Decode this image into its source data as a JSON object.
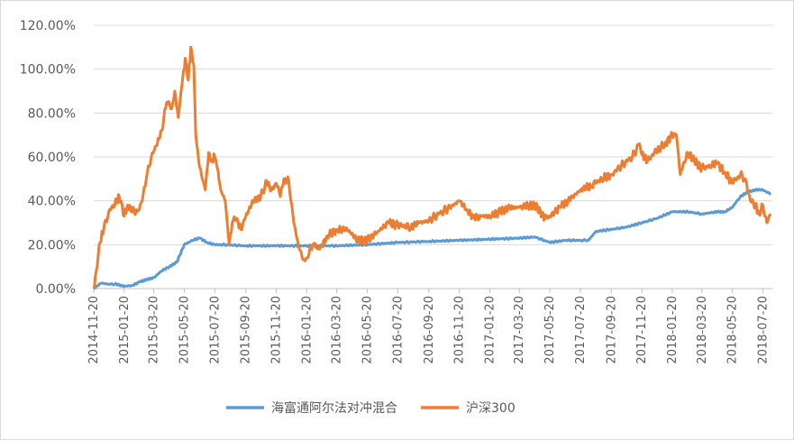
{
  "chart_data": {
    "type": "line",
    "title": "",
    "xlabel": "",
    "ylabel": "",
    "ylim": [
      0,
      1.2
    ],
    "y_ticks": [
      "0.00%",
      "20.00%",
      "40.00%",
      "60.00%",
      "80.00%",
      "100.00%",
      "120.00%"
    ],
    "x_tick_labels": [
      "2014-11-20",
      "2015-01-20",
      "2015-03-20",
      "2015-05-20",
      "2015-07-20",
      "2015-09-20",
      "2015-11-20",
      "2016-01-20",
      "2016-03-20",
      "2016-05-20",
      "2016-07-20",
      "2016-09-20",
      "2016-11-20",
      "2017-01-20",
      "2017-03-20",
      "2017-05-20",
      "2017-07-20",
      "2017-09-20",
      "2017-11-20",
      "2018-01-20",
      "2018-03-20",
      "2018-05-20",
      "2018-07-20"
    ],
    "legend_position": "bottom",
    "grid": "horizontal",
    "series": [
      {
        "name": "海富通阿尔法对冲混合",
        "color": "#5b9bd5",
        "x": [
          "2014-11-20",
          "2014-12-05",
          "2014-12-20",
          "2015-01-05",
          "2015-01-20",
          "2015-02-05",
          "2015-02-20",
          "2015-03-05",
          "2015-03-20",
          "2015-04-05",
          "2015-04-20",
          "2015-05-05",
          "2015-05-20",
          "2015-06-05",
          "2015-06-20",
          "2015-07-05",
          "2015-07-20",
          "2015-08-05",
          "2015-09-20",
          "2015-11-20",
          "2016-01-20",
          "2016-03-20",
          "2016-05-20",
          "2016-07-20",
          "2016-09-20",
          "2016-11-20",
          "2017-01-20",
          "2017-03-20",
          "2017-04-20",
          "2017-05-20",
          "2017-06-20",
          "2017-07-20",
          "2017-08-05",
          "2017-08-20",
          "2017-09-20",
          "2017-10-20",
          "2017-11-20",
          "2017-12-20",
          "2018-01-20",
          "2018-02-20",
          "2018-03-20",
          "2018-04-20",
          "2018-05-05",
          "2018-05-20",
          "2018-06-05",
          "2018-06-20",
          "2018-07-05",
          "2018-07-20",
          "2018-08-05"
        ],
        "values": [
          0.0,
          0.025,
          0.02,
          0.02,
          0.01,
          0.015,
          0.03,
          0.04,
          0.05,
          0.08,
          0.1,
          0.12,
          0.2,
          0.22,
          0.23,
          0.21,
          0.2,
          0.2,
          0.195,
          0.195,
          0.195,
          0.195,
          0.2,
          0.21,
          0.215,
          0.22,
          0.225,
          0.23,
          0.235,
          0.21,
          0.22,
          0.22,
          0.22,
          0.26,
          0.27,
          0.28,
          0.3,
          0.32,
          0.35,
          0.35,
          0.34,
          0.35,
          0.35,
          0.37,
          0.42,
          0.44,
          0.45,
          0.45,
          0.43
        ]
      },
      {
        "name": "沪深300",
        "color": "#ed7d31",
        "x": [
          "2014-11-20",
          "2014-11-25",
          "2014-12-01",
          "2014-12-10",
          "2014-12-20",
          "2015-01-05",
          "2015-01-10",
          "2015-01-20",
          "2015-01-27",
          "2015-02-05",
          "2015-02-15",
          "2015-02-25",
          "2015-03-05",
          "2015-03-15",
          "2015-03-25",
          "2015-04-05",
          "2015-04-15",
          "2015-04-25",
          "2015-05-01",
          "2015-05-08",
          "2015-05-15",
          "2015-05-22",
          "2015-05-28",
          "2015-06-02",
          "2015-06-08",
          "2015-06-12",
          "2015-06-18",
          "2015-06-25",
          "2015-07-01",
          "2015-07-08",
          "2015-07-13",
          "2015-07-20",
          "2015-07-25",
          "2015-08-01",
          "2015-08-10",
          "2015-08-18",
          "2015-08-24",
          "2015-09-01",
          "2015-09-10",
          "2015-09-20",
          "2015-10-05",
          "2015-10-20",
          "2015-11-01",
          "2015-11-10",
          "2015-11-20",
          "2015-11-28",
          "2015-12-05",
          "2015-12-15",
          "2015-12-25",
          "2016-01-05",
          "2016-01-15",
          "2016-01-20",
          "2016-02-01",
          "2016-02-15",
          "2016-03-01",
          "2016-03-20",
          "2016-04-10",
          "2016-05-01",
          "2016-05-20",
          "2016-06-10",
          "2016-07-01",
          "2016-07-20",
          "2016-08-15",
          "2016-09-01",
          "2016-09-20",
          "2016-10-10",
          "2016-11-01",
          "2016-11-20",
          "2016-12-05",
          "2016-12-20",
          "2017-01-05",
          "2017-01-20",
          "2017-02-10",
          "2017-03-01",
          "2017-03-20",
          "2017-04-10",
          "2017-04-25",
          "2017-05-10",
          "2017-05-20",
          "2017-06-10",
          "2017-07-01",
          "2017-07-20",
          "2017-08-10",
          "2017-09-01",
          "2017-09-20",
          "2017-10-10",
          "2017-11-01",
          "2017-11-15",
          "2017-11-20",
          "2017-12-01",
          "2017-12-15",
          "2018-01-05",
          "2018-01-20",
          "2018-01-28",
          "2018-02-05",
          "2018-02-10",
          "2018-02-20",
          "2018-03-05",
          "2018-03-20",
          "2018-04-05",
          "2018-04-20",
          "2018-05-05",
          "2018-05-20",
          "2018-06-05",
          "2018-06-15",
          "2018-06-25",
          "2018-07-05",
          "2018-07-12",
          "2018-07-20",
          "2018-07-28",
          "2018-08-05"
        ],
        "values": [
          0.0,
          0.08,
          0.2,
          0.27,
          0.35,
          0.4,
          0.42,
          0.33,
          0.38,
          0.36,
          0.35,
          0.4,
          0.5,
          0.6,
          0.65,
          0.72,
          0.85,
          0.82,
          0.9,
          0.78,
          0.92,
          1.05,
          0.95,
          1.1,
          1.02,
          0.7,
          0.58,
          0.5,
          0.45,
          0.62,
          0.58,
          0.6,
          0.55,
          0.45,
          0.4,
          0.2,
          0.3,
          0.32,
          0.27,
          0.33,
          0.4,
          0.42,
          0.49,
          0.45,
          0.48,
          0.42,
          0.5,
          0.49,
          0.3,
          0.18,
          0.13,
          0.14,
          0.2,
          0.18,
          0.24,
          0.27,
          0.27,
          0.22,
          0.22,
          0.26,
          0.3,
          0.29,
          0.28,
          0.3,
          0.31,
          0.34,
          0.37,
          0.4,
          0.36,
          0.32,
          0.33,
          0.33,
          0.35,
          0.37,
          0.37,
          0.38,
          0.37,
          0.32,
          0.33,
          0.37,
          0.41,
          0.45,
          0.47,
          0.5,
          0.52,
          0.56,
          0.6,
          0.66,
          0.61,
          0.58,
          0.62,
          0.66,
          0.7,
          0.7,
          0.52,
          0.56,
          0.62,
          0.58,
          0.55,
          0.56,
          0.57,
          0.53,
          0.48,
          0.52,
          0.5,
          0.4,
          0.38,
          0.34,
          0.38,
          0.3,
          0.34
        ]
      }
    ]
  }
}
